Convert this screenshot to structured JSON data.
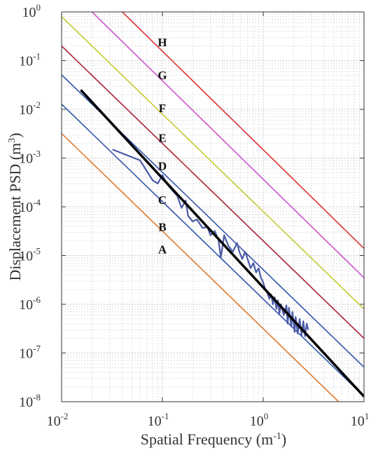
{
  "chart_data": {
    "type": "line",
    "xscale": "log",
    "yscale": "log",
    "xlim": [
      0.01,
      10
    ],
    "ylim": [
      1e-08,
      1
    ],
    "grid": true,
    "xlabel": {
      "main": "Spatial Frequency (m",
      "exp": "-1",
      "close": ")"
    },
    "ylabel": {
      "main": "Displacement PSD (m",
      "exp": "3",
      "close": ")"
    },
    "x_ticks": [
      {
        "value": 0.01,
        "base": "10",
        "exp": "-2"
      },
      {
        "value": 0.1,
        "base": "10",
        "exp": "-1"
      },
      {
        "value": 1,
        "base": "10",
        "exp": "0"
      },
      {
        "value": 10,
        "base": "10",
        "exp": "1"
      }
    ],
    "y_ticks": [
      {
        "value": 1,
        "base": "10",
        "exp": "0"
      },
      {
        "value": 0.1,
        "base": "10",
        "exp": "-1"
      },
      {
        "value": 0.01,
        "base": "10",
        "exp": "-2"
      },
      {
        "value": 0.001,
        "base": "10",
        "exp": "-3"
      },
      {
        "value": 0.0001,
        "base": "10",
        "exp": "-4"
      },
      {
        "value": 1e-05,
        "base": "10",
        "exp": "-5"
      },
      {
        "value": 1e-06,
        "base": "10",
        "exp": "-6"
      },
      {
        "value": 1e-07,
        "base": "10",
        "exp": "-7"
      },
      {
        "value": 1e-08,
        "base": "10",
        "exp": "-8"
      }
    ],
    "class_boundaries": [
      {
        "name": "",
        "color": "#e07a30",
        "points": [
          [
            0.01,
            0.0032
          ],
          [
            5.6,
            1e-08
          ]
        ]
      },
      {
        "name": "",
        "color": "#3355aa",
        "points": [
          [
            0.01,
            0.0128
          ],
          [
            10,
            1.28e-08
          ]
        ]
      },
      {
        "name": "",
        "color": "#3355aa",
        "points": [
          [
            0.01,
            0.0512
          ],
          [
            10,
            5.12e-08
          ]
        ]
      },
      {
        "name": "",
        "color": "#aa2233",
        "points": [
          [
            0.01,
            0.2
          ],
          [
            10,
            2e-07
          ]
        ]
      },
      {
        "name": "",
        "color": "#c8c833",
        "points": [
          [
            0.01,
            0.8
          ],
          [
            10,
            8e-07
          ]
        ]
      },
      {
        "name": "",
        "color": "#cc55cc",
        "points": [
          [
            0.02,
            1
          ],
          [
            10,
            3.5e-06
          ]
        ]
      },
      {
        "name": "",
        "color": "#dd3333",
        "points": [
          [
            0.04,
            1
          ],
          [
            10,
            1.4e-05
          ]
        ]
      }
    ],
    "class_labels": [
      {
        "label": "A",
        "x": 0.1,
        "y": 1.35e-05
      },
      {
        "label": "B",
        "x": 0.1,
        "y": 3.9e-05
      },
      {
        "label": "C",
        "x": 0.1,
        "y": 0.00014
      },
      {
        "label": "D",
        "x": 0.1,
        "y": 0.00069
      },
      {
        "label": "E",
        "x": 0.1,
        "y": 0.0026
      },
      {
        "label": "F",
        "x": 0.1,
        "y": 0.0107
      },
      {
        "label": "G",
        "x": 0.1,
        "y": 0.051
      },
      {
        "label": "H",
        "x": 0.1,
        "y": 0.24
      }
    ],
    "series": [
      {
        "name": "",
        "color": "#4a5aa8",
        "points": [
          [
            0.032,
            0.0015
          ],
          [
            0.06,
            0.0009
          ],
          [
            0.08,
            0.00035
          ],
          [
            0.09,
            0.0003
          ],
          [
            0.1,
            0.00045
          ],
          [
            0.11,
            0.0003
          ],
          [
            0.125,
            0.00022
          ],
          [
            0.14,
            0.00017
          ],
          [
            0.155,
            9.5e-05
          ],
          [
            0.17,
            0.000135
          ],
          [
            0.18,
            6.5e-05
          ],
          [
            0.2,
            5e-05
          ],
          [
            0.22,
            5.5e-05
          ],
          [
            0.25,
            3.7e-05
          ],
          [
            0.28,
            3.8e-05
          ],
          [
            0.3,
            2.6e-05
          ],
          [
            0.33,
            3.2e-05
          ],
          [
            0.36,
            2.1e-05
          ],
          [
            0.38,
            9.2e-06
          ],
          [
            0.41,
            2.6e-05
          ],
          [
            0.45,
            1.6e-05
          ],
          [
            0.5,
            1.2e-05
          ],
          [
            0.55,
            1.8e-05
          ],
          [
            0.58,
            1.2e-05
          ],
          [
            0.62,
            8.5e-06
          ],
          [
            0.66,
            1.2e-05
          ],
          [
            0.7,
            8.5e-06
          ],
          [
            0.75,
            5.5e-06
          ],
          [
            0.8,
            7e-06
          ],
          [
            0.85,
            4.5e-06
          ],
          [
            0.9,
            5.5e-06
          ],
          [
            0.95,
            3.5e-06
          ],
          [
            1.0,
            2.8e-06
          ],
          [
            1.05,
            2e-06
          ],
          [
            1.1,
            1.7e-06
          ],
          [
            1.15,
            1.3e-06
          ],
          [
            1.2,
            1.6e-06
          ],
          [
            1.25,
            1e-06
          ],
          [
            1.3,
            1.4e-06
          ],
          [
            1.35,
            8e-07
          ],
          [
            1.4,
            1.2e-06
          ],
          [
            1.45,
            6.5e-07
          ],
          [
            1.5,
            1e-06
          ],
          [
            1.6,
            6e-07
          ],
          [
            1.7,
            9.5e-07
          ],
          [
            1.75,
            4e-07
          ],
          [
            1.8,
            8.5e-07
          ],
          [
            1.9,
            3.5e-07
          ],
          [
            1.95,
            7e-07
          ],
          [
            2.05,
            2.7e-07
          ],
          [
            2.1,
            5.5e-07
          ],
          [
            2.2,
            2.5e-07
          ],
          [
            2.3,
            5e-07
          ],
          [
            2.4,
            2.3e-07
          ],
          [
            2.5,
            4.5e-07
          ],
          [
            2.6,
            2.2e-07
          ],
          [
            2.7,
            4e-07
          ],
          [
            2.8,
            3e-07
          ]
        ]
      },
      {
        "name": "",
        "color": "#000000",
        "points": [
          [
            0.0155,
            0.025
          ],
          [
            10,
            1.28e-08
          ]
        ]
      }
    ]
  }
}
